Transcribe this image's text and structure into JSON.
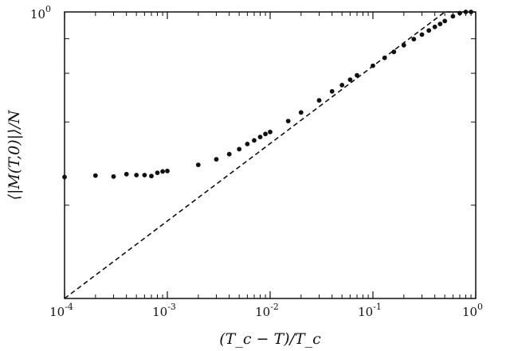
{
  "chart_data": {
    "type": "scatter",
    "title": "",
    "xlabel": "(T_c − T)/T_c",
    "ylabel": "⟨|M(T,0)|⟩/N",
    "x_scale": "log",
    "y_scale": "log",
    "xlim": [
      0.0001,
      1
    ],
    "ylim": [
      0.092,
      1
    ],
    "grid": false,
    "legend": "none",
    "x_ticks": [
      {
        "value": 0.0001,
        "base": "10",
        "exp": "-4"
      },
      {
        "value": 0.001,
        "base": "10",
        "exp": "-3"
      },
      {
        "value": 0.01,
        "base": "10",
        "exp": "-2"
      },
      {
        "value": 0.1,
        "base": "10",
        "exp": "-1"
      },
      {
        "value": 1,
        "base": "10",
        "exp": "0"
      }
    ],
    "y_ticks": [
      {
        "value": 1,
        "base": "10",
        "exp": "0"
      }
    ],
    "y_minor_ticks": [
      0.2,
      0.4,
      0.6,
      0.8
    ],
    "series": [
      {
        "kind": "points",
        "x": [
          0.0001,
          0.0002,
          0.0003,
          0.0004,
          0.0005,
          0.0006,
          0.0007,
          0.0008,
          0.0009,
          0.001,
          0.002,
          0.003,
          0.004,
          0.005,
          0.006,
          0.007,
          0.008,
          0.009,
          0.01,
          0.015,
          0.02,
          0.03,
          0.04,
          0.05,
          0.06,
          0.07,
          0.1,
          0.13,
          0.16,
          0.2,
          0.25,
          0.3,
          0.35,
          0.4,
          0.45,
          0.5,
          0.6,
          0.7,
          0.8,
          0.9
        ],
        "y": [
          0.253,
          0.256,
          0.254,
          0.259,
          0.257,
          0.257,
          0.255,
          0.262,
          0.265,
          0.266,
          0.28,
          0.293,
          0.306,
          0.319,
          0.333,
          0.343,
          0.353,
          0.362,
          0.368,
          0.403,
          0.433,
          0.479,
          0.516,
          0.544,
          0.569,
          0.59,
          0.639,
          0.682,
          0.717,
          0.758,
          0.797,
          0.828,
          0.857,
          0.883,
          0.905,
          0.927,
          0.964,
          0.99,
          1.0,
          1.0
        ],
        "color": "#111111"
      },
      {
        "kind": "dashed-line",
        "x": [
          0.0001,
          0.5,
          1
        ],
        "y": [
          0.092,
          1.0,
          1.0
        ],
        "color": "#111111"
      }
    ]
  }
}
